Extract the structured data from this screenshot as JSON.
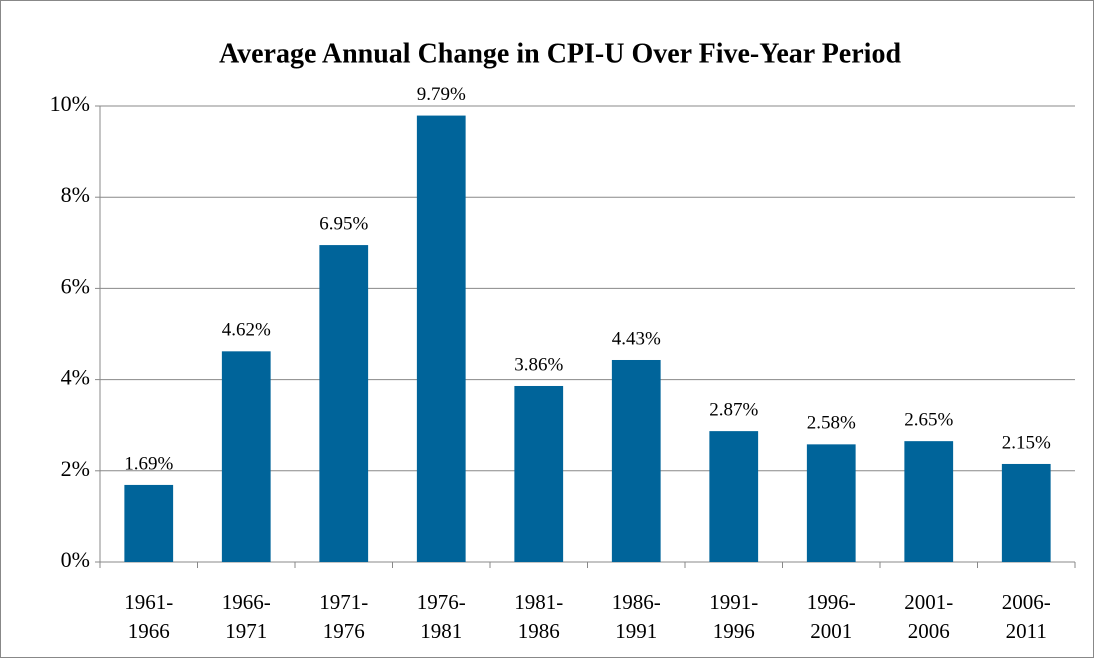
{
  "chart_data": {
    "type": "bar",
    "title": "Average Annual Change in  CPI-U Over Five-Year Period",
    "categories": [
      "1961-1966",
      "1966-1971",
      "1971-1976",
      "1976-1981",
      "1981-1986",
      "1986-1991",
      "1991-1996",
      "1996-2001",
      "2001-2006",
      "2006-2011"
    ],
    "values": [
      1.69,
      4.62,
      6.95,
      9.79,
      3.86,
      4.43,
      2.87,
      2.58,
      2.65,
      2.15
    ],
    "value_labels": [
      "1.69%",
      "4.62%",
      "6.95%",
      "9.79%",
      "3.86%",
      "4.43%",
      "2.87%",
      "2.58%",
      "2.65%",
      "2.15%"
    ],
    "color": "#00649a",
    "ylim": [
      0,
      10
    ],
    "yticks": [
      {
        "value": 0,
        "label": "0%"
      },
      {
        "value": 2,
        "label": "2%"
      },
      {
        "value": 4,
        "label": "4%"
      },
      {
        "value": 6,
        "label": "6%"
      },
      {
        "value": 8,
        "label": "8%"
      },
      {
        "value": 10,
        "label": "10%"
      }
    ],
    "grid": true
  }
}
